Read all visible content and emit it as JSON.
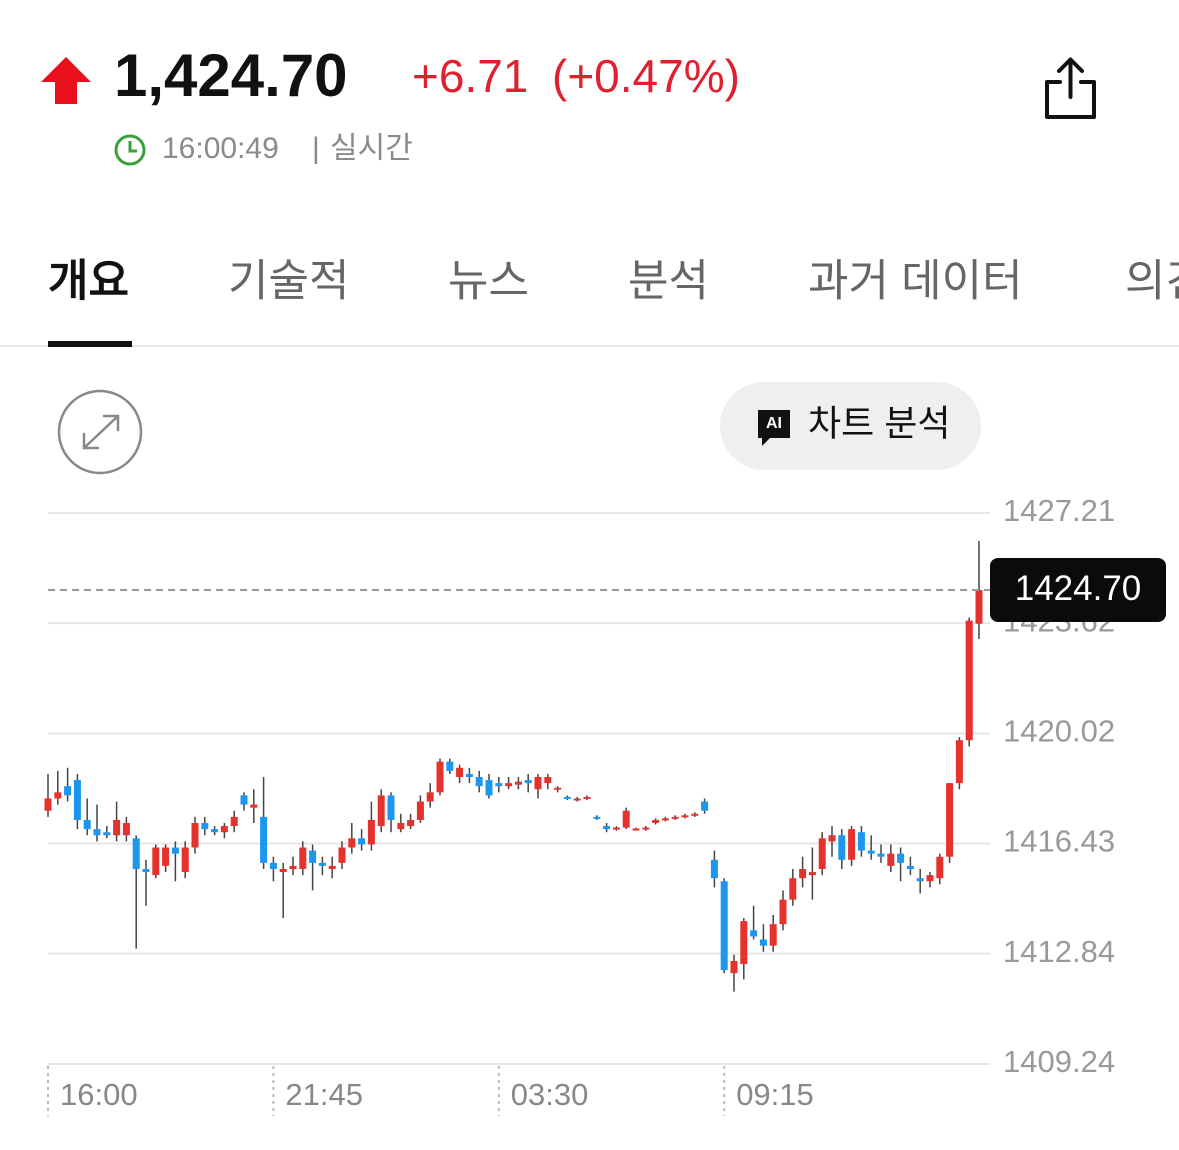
{
  "header": {
    "price": "1,424.70",
    "change": "+6.71",
    "change_pct": "(+0.47%)",
    "time": "16:00:49",
    "separator": "|",
    "mode": "실시간"
  },
  "tabs": [
    "개요",
    "기술적",
    "뉴스",
    "분석",
    "과거 데이터",
    "의견"
  ],
  "ai_button": {
    "icon": "AI",
    "label": "차트 분석"
  },
  "chart_data": {
    "type": "candlestick",
    "up_color": "#e5322d",
    "down_color": "#1c96ef",
    "wick_color": "#444444",
    "ylim": [
      1409.24,
      1427.21
    ],
    "yticks": [
      1409.24,
      1412.84,
      1416.43,
      1420.02,
      1423.62,
      1427.21
    ],
    "grid": true,
    "last_price": {
      "value": 1424.7,
      "label": "1424.70"
    },
    "categories": [
      "16:00",
      null,
      null,
      null,
      null,
      null,
      null,
      null,
      null,
      null,
      null,
      null,
      null,
      null,
      null,
      null,
      null,
      null,
      null,
      null,
      null,
      null,
      null,
      "21:45",
      null,
      null,
      null,
      null,
      null,
      null,
      null,
      null,
      null,
      null,
      null,
      null,
      null,
      null,
      null,
      null,
      null,
      null,
      null,
      null,
      null,
      null,
      "03:30",
      null,
      null,
      null,
      null,
      null,
      null,
      null,
      null,
      null,
      null,
      null,
      null,
      null,
      null,
      null,
      null,
      null,
      null,
      null,
      null,
      null,
      null,
      "09:15",
      null,
      null,
      null,
      null,
      null,
      null,
      null,
      null,
      null,
      null,
      null,
      null,
      null,
      null,
      null,
      null,
      null,
      null,
      null,
      null,
      null,
      null,
      null,
      null,
      null,
      null
    ],
    "candles": [
      {
        "open": 1417.5,
        "high": 1418.7,
        "low": 1417.3,
        "close": 1417.9
      },
      {
        "open": 1417.9,
        "high": 1418.8,
        "low": 1417.7,
        "close": 1418.1
      },
      {
        "open": 1418.3,
        "high": 1418.9,
        "low": 1417.8,
        "close": 1418.0
      },
      {
        "open": 1418.5,
        "high": 1418.7,
        "low": 1416.9,
        "close": 1417.2
      },
      {
        "open": 1417.2,
        "high": 1417.9,
        "low": 1416.7,
        "close": 1416.9
      },
      {
        "open": 1416.9,
        "high": 1417.7,
        "low": 1416.5,
        "close": 1416.7
      },
      {
        "open": 1416.8,
        "high": 1417.0,
        "low": 1416.6,
        "close": 1416.7
      },
      {
        "open": 1416.7,
        "high": 1417.8,
        "low": 1416.5,
        "close": 1417.2
      },
      {
        "open": 1416.7,
        "high": 1417.3,
        "low": 1416.5,
        "close": 1417.1
      },
      {
        "open": 1416.6,
        "high": 1416.7,
        "low": 1413.0,
        "close": 1415.6
      },
      {
        "open": 1415.6,
        "high": 1415.9,
        "low": 1414.4,
        "close": 1415.5
      },
      {
        "open": 1415.4,
        "high": 1416.4,
        "low": 1415.3,
        "close": 1416.3
      },
      {
        "open": 1415.7,
        "high": 1416.4,
        "low": 1415.5,
        "close": 1416.3
      },
      {
        "open": 1416.3,
        "high": 1416.5,
        "low": 1415.2,
        "close": 1416.1
      },
      {
        "open": 1415.5,
        "high": 1416.5,
        "low": 1415.3,
        "close": 1416.3
      },
      {
        "open": 1416.3,
        "high": 1417.3,
        "low": 1416.1,
        "close": 1417.1
      },
      {
        "open": 1417.1,
        "high": 1417.3,
        "low": 1416.7,
        "close": 1416.9
      },
      {
        "open": 1416.9,
        "high": 1417.0,
        "low": 1416.7,
        "close": 1416.8
      },
      {
        "open": 1416.8,
        "high": 1417.1,
        "low": 1416.6,
        "close": 1417.0
      },
      {
        "open": 1417.0,
        "high": 1417.5,
        "low": 1416.8,
        "close": 1417.3
      },
      {
        "open": 1418.0,
        "high": 1418.1,
        "low": 1417.5,
        "close": 1417.7
      },
      {
        "open": 1417.6,
        "high": 1418.2,
        "low": 1417.1,
        "close": 1417.7
      },
      {
        "open": 1417.3,
        "high": 1418.6,
        "low": 1415.6,
        "close": 1415.8
      },
      {
        "open": 1415.8,
        "high": 1416.0,
        "low": 1415.2,
        "close": 1415.6
      },
      {
        "open": 1415.5,
        "high": 1415.8,
        "low": 1414.0,
        "close": 1415.6
      },
      {
        "open": 1415.6,
        "high": 1416.0,
        "low": 1415.4,
        "close": 1415.7
      },
      {
        "open": 1415.6,
        "high": 1416.5,
        "low": 1415.4,
        "close": 1416.3
      },
      {
        "open": 1416.2,
        "high": 1416.4,
        "low": 1414.9,
        "close": 1415.8
      },
      {
        "open": 1415.8,
        "high": 1416.0,
        "low": 1415.4,
        "close": 1415.7
      },
      {
        "open": 1415.6,
        "high": 1416.0,
        "low": 1415.3,
        "close": 1415.7
      },
      {
        "open": 1415.8,
        "high": 1416.5,
        "low": 1415.6,
        "close": 1416.3
      },
      {
        "open": 1416.3,
        "high": 1417.1,
        "low": 1416.1,
        "close": 1416.6
      },
      {
        "open": 1416.6,
        "high": 1416.9,
        "low": 1416.2,
        "close": 1416.4
      },
      {
        "open": 1416.4,
        "high": 1417.8,
        "low": 1416.2,
        "close": 1417.2
      },
      {
        "open": 1417.0,
        "high": 1418.2,
        "low": 1416.8,
        "close": 1418.0
      },
      {
        "open": 1418.0,
        "high": 1418.1,
        "low": 1416.8,
        "close": 1417.2
      },
      {
        "open": 1416.9,
        "high": 1417.4,
        "low": 1416.8,
        "close": 1417.1
      },
      {
        "open": 1417.0,
        "high": 1417.4,
        "low": 1416.9,
        "close": 1417.2
      },
      {
        "open": 1417.2,
        "high": 1418.0,
        "low": 1417.1,
        "close": 1417.8
      },
      {
        "open": 1417.8,
        "high": 1418.4,
        "low": 1417.6,
        "close": 1418.1
      },
      {
        "open": 1418.1,
        "high": 1419.2,
        "low": 1418.0,
        "close": 1419.1
      },
      {
        "open": 1419.1,
        "high": 1419.2,
        "low": 1418.7,
        "close": 1418.8
      },
      {
        "open": 1418.6,
        "high": 1419.0,
        "low": 1418.4,
        "close": 1418.9
      },
      {
        "open": 1418.7,
        "high": 1418.9,
        "low": 1418.4,
        "close": 1418.6
      },
      {
        "open": 1418.6,
        "high": 1418.8,
        "low": 1418.1,
        "close": 1418.3
      },
      {
        "open": 1418.5,
        "high": 1418.7,
        "low": 1417.9,
        "close": 1418.0
      },
      {
        "open": 1418.4,
        "high": 1418.6,
        "low": 1418.1,
        "close": 1418.3
      },
      {
        "open": 1418.3,
        "high": 1418.6,
        "low": 1418.2,
        "close": 1418.4
      },
      {
        "open": 1418.35,
        "high": 1418.6,
        "low": 1418.2,
        "close": 1418.45
      },
      {
        "open": 1418.5,
        "high": 1418.7,
        "low": 1418.1,
        "close": 1418.4
      },
      {
        "open": 1418.2,
        "high": 1418.7,
        "low": 1417.9,
        "close": 1418.6
      },
      {
        "open": 1418.4,
        "high": 1418.7,
        "low": 1418.2,
        "close": 1418.6
      },
      {
        "open": 1418.2,
        "high": 1418.3,
        "low": 1418.1,
        "close": 1418.25
      },
      {
        "open": 1417.95,
        "high": 1418.0,
        "low": 1417.85,
        "close": 1417.9
      },
      {
        "open": 1417.85,
        "high": 1417.95,
        "low": 1417.8,
        "close": 1417.9
      },
      {
        "open": 1417.9,
        "high": 1418.0,
        "low": 1417.85,
        "close": 1417.95
      },
      {
        "open": 1417.3,
        "high": 1417.35,
        "low": 1417.2,
        "close": 1417.25
      },
      {
        "open": 1417.0,
        "high": 1417.1,
        "low": 1416.8,
        "close": 1416.9
      },
      {
        "open": 1416.9,
        "high": 1417.0,
        "low": 1416.85,
        "close": 1416.95
      },
      {
        "open": 1416.95,
        "high": 1417.6,
        "low": 1416.9,
        "close": 1417.5
      },
      {
        "open": 1416.9,
        "high": 1416.95,
        "low": 1416.85,
        "close": 1416.92
      },
      {
        "open": 1416.9,
        "high": 1417.0,
        "low": 1416.85,
        "close": 1416.95
      },
      {
        "open": 1417.1,
        "high": 1417.25,
        "low": 1417.05,
        "close": 1417.2
      },
      {
        "open": 1417.2,
        "high": 1417.3,
        "low": 1417.15,
        "close": 1417.25
      },
      {
        "open": 1417.25,
        "high": 1417.35,
        "low": 1417.2,
        "close": 1417.3
      },
      {
        "open": 1417.3,
        "high": 1417.4,
        "low": 1417.25,
        "close": 1417.35
      },
      {
        "open": 1417.35,
        "high": 1417.45,
        "low": 1417.3,
        "close": 1417.4
      },
      {
        "open": 1417.8,
        "high": 1417.9,
        "low": 1417.4,
        "close": 1417.5
      },
      {
        "open": 1415.9,
        "high": 1416.2,
        "low": 1415.0,
        "close": 1415.3
      },
      {
        "open": 1415.2,
        "high": 1415.3,
        "low": 1412.2,
        "close": 1412.3
      },
      {
        "open": 1412.2,
        "high": 1412.8,
        "low": 1411.6,
        "close": 1412.6
      },
      {
        "open": 1412.5,
        "high": 1414.0,
        "low": 1412.0,
        "close": 1413.9
      },
      {
        "open": 1413.6,
        "high": 1414.4,
        "low": 1413.3,
        "close": 1413.4
      },
      {
        "open": 1413.3,
        "high": 1413.8,
        "low": 1412.9,
        "close": 1413.1
      },
      {
        "open": 1413.1,
        "high": 1414.1,
        "low": 1412.9,
        "close": 1413.8
      },
      {
        "open": 1413.8,
        "high": 1414.9,
        "low": 1413.6,
        "close": 1414.6
      },
      {
        "open": 1414.6,
        "high": 1415.6,
        "low": 1414.4,
        "close": 1415.3
      },
      {
        "open": 1415.3,
        "high": 1416.0,
        "low": 1415.0,
        "close": 1415.6
      },
      {
        "open": 1415.4,
        "high": 1416.3,
        "low": 1414.6,
        "close": 1415.5
      },
      {
        "open": 1415.6,
        "high": 1416.8,
        "low": 1415.4,
        "close": 1416.6
      },
      {
        "open": 1416.5,
        "high": 1417.0,
        "low": 1416.0,
        "close": 1416.7
      },
      {
        "open": 1416.7,
        "high": 1416.9,
        "low": 1415.6,
        "close": 1415.9
      },
      {
        "open": 1415.9,
        "high": 1417.0,
        "low": 1415.7,
        "close": 1416.9
      },
      {
        "open": 1416.8,
        "high": 1417.0,
        "low": 1416.0,
        "close": 1416.2
      },
      {
        "open": 1416.2,
        "high": 1416.7,
        "low": 1415.9,
        "close": 1416.1
      },
      {
        "open": 1416.1,
        "high": 1416.4,
        "low": 1415.8,
        "close": 1416.0
      },
      {
        "open": 1415.7,
        "high": 1416.4,
        "low": 1415.5,
        "close": 1416.1
      },
      {
        "open": 1416.1,
        "high": 1416.3,
        "low": 1415.2,
        "close": 1415.8
      },
      {
        "open": 1415.7,
        "high": 1416.0,
        "low": 1415.4,
        "close": 1415.6
      },
      {
        "open": 1415.3,
        "high": 1415.6,
        "low": 1414.8,
        "close": 1415.2
      },
      {
        "open": 1415.2,
        "high": 1415.5,
        "low": 1415.0,
        "close": 1415.4
      },
      {
        "open": 1415.3,
        "high": 1416.1,
        "low": 1415.1,
        "close": 1416.0
      },
      {
        "open": 1416.0,
        "high": 1418.4,
        "low": 1415.8,
        "close": 1418.4
      },
      {
        "open": 1418.4,
        "high": 1419.9,
        "low": 1418.2,
        "close": 1419.8
      },
      {
        "open": 1419.8,
        "high": 1423.8,
        "low": 1419.6,
        "close": 1423.7
      },
      {
        "open": 1423.6,
        "high": 1426.3,
        "low": 1423.1,
        "close": 1424.7
      }
    ]
  }
}
